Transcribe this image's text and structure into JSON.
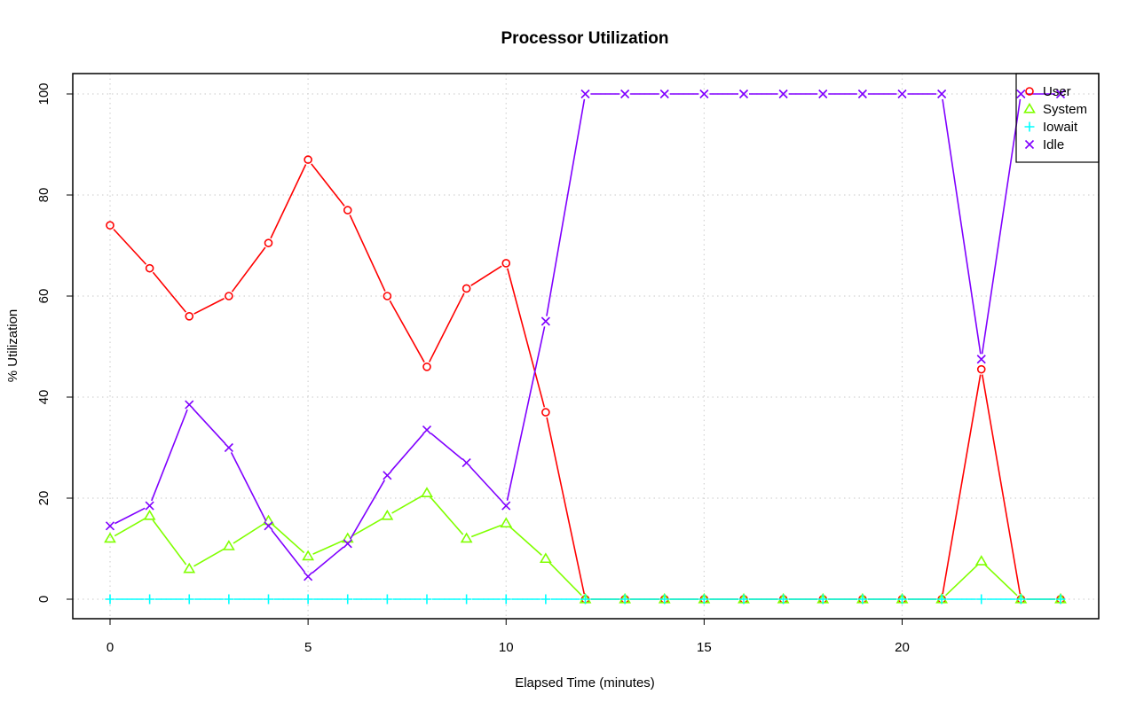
{
  "chart_data": {
    "type": "line",
    "title": "Processor Utilization",
    "xlabel": "Elapsed Time (minutes)",
    "ylabel": "% Utilization",
    "xlim": [
      0,
      24
    ],
    "ylim": [
      0,
      100
    ],
    "x_ticks": [
      0,
      5,
      10,
      15,
      20
    ],
    "y_ticks": [
      0,
      20,
      40,
      60,
      80,
      100
    ],
    "grid": true,
    "legend_position": "top-right",
    "x": [
      0,
      1,
      2,
      3,
      4,
      5,
      6,
      7,
      8,
      9,
      10,
      11,
      12,
      13,
      14,
      15,
      16,
      17,
      18,
      19,
      20,
      21,
      22,
      23,
      24
    ],
    "series": [
      {
        "name": "User",
        "color": "#ff0000",
        "marker": "circle",
        "values": [
          74,
          65.5,
          56,
          60,
          70.5,
          87,
          77,
          60,
          46,
          61.5,
          66.5,
          37,
          0,
          0,
          0,
          0,
          0,
          0,
          0,
          0,
          0,
          0,
          45.5,
          0,
          0
        ]
      },
      {
        "name": "System",
        "color": "#80ff00",
        "marker": "triangle",
        "values": [
          12,
          16.5,
          6,
          10.5,
          15.5,
          8.5,
          12,
          16.5,
          21,
          12,
          15,
          8,
          0,
          0,
          0,
          0,
          0,
          0,
          0,
          0,
          0,
          0,
          7.5,
          0,
          0
        ]
      },
      {
        "name": "Iowait",
        "color": "#00ffff",
        "marker": "plus",
        "values": [
          0,
          0,
          0,
          0,
          0,
          0,
          0,
          0,
          0,
          0,
          0,
          0,
          0,
          0,
          0,
          0,
          0,
          0,
          0,
          0,
          0,
          0,
          0,
          0,
          0
        ]
      },
      {
        "name": "Idle",
        "color": "#8000ff",
        "marker": "x",
        "values": [
          14.5,
          18.5,
          38.5,
          30,
          14.5,
          4.5,
          11,
          24.5,
          33.5,
          27,
          18.5,
          55,
          100,
          100,
          100,
          100,
          100,
          100,
          100,
          100,
          100,
          100,
          47.5,
          100,
          100
        ]
      }
    ]
  }
}
